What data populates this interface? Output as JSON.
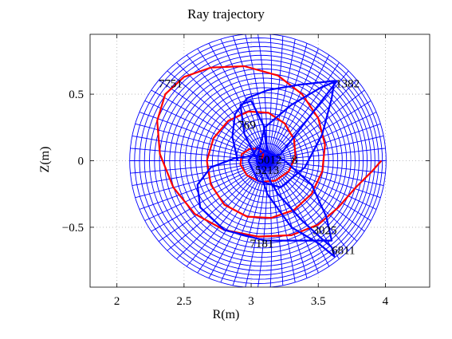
{
  "chart_data": {
    "type": "line",
    "title": "Ray trajectory",
    "xlabel": "R(m)",
    "ylabel": "Z(m)",
    "xlim": [
      1.8,
      4.33
    ],
    "ylim": [
      -0.95,
      0.95
    ],
    "xticks": [
      2,
      2.5,
      3,
      3.5,
      4
    ],
    "xtick_labels": [
      "2",
      "2.5",
      "3",
      "3.5",
      "4"
    ],
    "yticks": [
      -0.5,
      0,
      0.5
    ],
    "ytick_labels": [
      "−0.5",
      "0",
      "0.5"
    ],
    "grid": true,
    "grid_mesh": {
      "description": "flux-surface coordinate mesh",
      "color": "#0000ff",
      "center": [
        3.05,
        0.0
      ],
      "outer_radius": 0.955,
      "n_surfaces": 24,
      "n_poloidal": 64
    },
    "series": [
      {
        "color": "#ff0000",
        "points": [
          [
            3.97,
            0.0
          ],
          [
            3.9,
            -0.08
          ],
          [
            3.78,
            -0.2
          ],
          [
            3.65,
            -0.35
          ],
          [
            3.5,
            -0.48
          ],
          [
            3.3,
            -0.56
          ],
          [
            3.05,
            -0.57
          ],
          [
            2.8,
            -0.52
          ],
          [
            2.58,
            -0.4
          ],
          [
            2.42,
            -0.2
          ],
          [
            2.32,
            0.05
          ],
          [
            2.3,
            0.3
          ],
          [
            2.36,
            0.5
          ],
          [
            2.5,
            0.63
          ],
          [
            2.7,
            0.7
          ],
          [
            2.95,
            0.71
          ],
          [
            3.2,
            0.64
          ],
          [
            3.38,
            0.5
          ],
          [
            3.5,
            0.32
          ],
          [
            3.55,
            0.12
          ],
          [
            3.53,
            -0.08
          ],
          [
            3.45,
            -0.25
          ],
          [
            3.32,
            -0.37
          ],
          [
            3.15,
            -0.43
          ],
          [
            2.97,
            -0.42
          ],
          [
            2.8,
            -0.33
          ],
          [
            2.7,
            -0.18
          ],
          [
            2.67,
            0.0
          ],
          [
            2.72,
            0.17
          ],
          [
            2.83,
            0.3
          ],
          [
            2.98,
            0.37
          ],
          [
            3.13,
            0.36
          ],
          [
            3.25,
            0.28
          ],
          [
            3.32,
            0.16
          ],
          [
            3.33,
            0.03
          ],
          [
            3.28,
            -0.08
          ],
          [
            3.18,
            -0.15
          ],
          [
            3.07,
            -0.16
          ],
          [
            2.97,
            -0.11
          ],
          [
            2.92,
            -0.03
          ],
          [
            2.93,
            0.05
          ],
          [
            2.99,
            0.09
          ],
          [
            3.05,
            0.09
          ],
          [
            3.09,
            0.05
          ],
          [
            3.08,
            0.01
          ],
          [
            3.05,
            0.0
          ]
        ]
      },
      {
        "color": "#0000ff",
        "points": [
          [
            2.9,
            0.0
          ],
          [
            2.86,
            0.18
          ],
          [
            2.88,
            0.35
          ],
          [
            2.97,
            0.47
          ],
          [
            3.12,
            0.53
          ],
          [
            3.35,
            0.57
          ],
          [
            3.62,
            0.6
          ],
          [
            3.6,
            0.47
          ],
          [
            3.53,
            0.2
          ],
          [
            3.4,
            -0.05
          ],
          [
            3.22,
            -0.2
          ],
          [
            3.05,
            -0.15
          ],
          [
            2.98,
            0.0
          ],
          [
            3.05,
            0.1
          ],
          [
            3.25,
            0.0
          ],
          [
            3.45,
            -0.18
          ],
          [
            3.56,
            -0.42
          ],
          [
            3.6,
            -0.6
          ],
          [
            3.45,
            -0.6
          ],
          [
            3.1,
            -0.6
          ],
          [
            2.8,
            -0.52
          ],
          [
            2.62,
            -0.35
          ],
          [
            2.6,
            -0.18
          ],
          [
            2.7,
            -0.05
          ],
          [
            2.88,
            0.02
          ],
          [
            3.05,
            0.04
          ],
          [
            3.12,
            0.08
          ],
          [
            3.1,
            0.25
          ],
          [
            3.0,
            0.45
          ],
          [
            2.92,
            0.42
          ],
          [
            2.95,
            0.2
          ],
          [
            3.05,
            0.0
          ],
          [
            3.2,
            -0.25
          ],
          [
            3.38,
            -0.45
          ],
          [
            3.52,
            -0.58
          ],
          [
            3.6,
            -0.65
          ],
          [
            3.62,
            -0.72
          ],
          [
            3.5,
            -0.62
          ],
          [
            3.3,
            -0.5
          ],
          [
            3.12,
            -0.25
          ],
          [
            3.04,
            0.0
          ],
          [
            3.1,
            0.25
          ],
          [
            3.3,
            0.42
          ],
          [
            3.52,
            0.55
          ],
          [
            3.64,
            0.6
          ],
          [
            3.45,
            0.35
          ],
          [
            3.22,
            0.05
          ],
          [
            3.05,
            0.0
          ]
        ]
      }
    ],
    "annotations": [
      {
        "text": "7751",
        "x": 2.31,
        "y": 0.55
      },
      {
        "text": "1382",
        "x": 3.63,
        "y": 0.55
      },
      {
        "text": "769",
        "x": 2.9,
        "y": 0.24
      },
      {
        "text": "5012",
        "x": 3.05,
        "y": -0.02
      },
      {
        "text": "8",
        "x": 3.3,
        "y": -0.02
      },
      {
        "text": "5213",
        "x": 3.03,
        "y": -0.1
      },
      {
        "text": "3025",
        "x": 3.46,
        "y": -0.55
      },
      {
        "text": "7181",
        "x": 2.99,
        "y": -0.65
      },
      {
        "text": "6811",
        "x": 3.6,
        "y": -0.7
      }
    ]
  }
}
